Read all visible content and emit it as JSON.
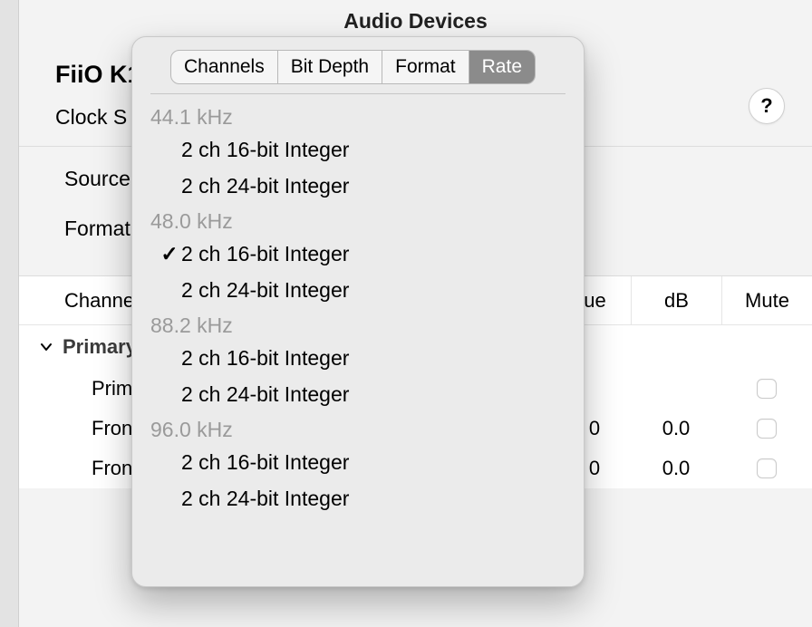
{
  "window": {
    "title": "Audio Devices"
  },
  "device": {
    "name": "FiiO K1",
    "clock_label": "Clock S"
  },
  "help": {
    "glyph": "?"
  },
  "middle": {
    "source_label": "Source",
    "format_label": "Format"
  },
  "table": {
    "headers": {
      "channel": "Channel",
      "value_tail": "ue",
      "db": "dB",
      "mute": "Mute"
    },
    "section_label": "Primary",
    "rows": [
      {
        "name": "Prim",
        "ue": "",
        "db": "",
        "mute": true
      },
      {
        "name": "Front L",
        "ue": "0",
        "db": "0.0",
        "mute": true
      },
      {
        "name": "Front Ri",
        "ue": "0",
        "db": "0.0",
        "mute": true
      }
    ]
  },
  "popover": {
    "tabs": [
      "Channels",
      "Bit Depth",
      "Format",
      "Rate"
    ],
    "selected_tab_index": 3,
    "groups": [
      {
        "header": "44.1 kHz",
        "options": [
          {
            "label": "2 ch 16-bit Integer",
            "checked": false
          },
          {
            "label": "2 ch 24-bit Integer",
            "checked": false
          }
        ]
      },
      {
        "header": "48.0 kHz",
        "options": [
          {
            "label": "2 ch 16-bit Integer",
            "checked": true
          },
          {
            "label": "2 ch 24-bit Integer",
            "checked": false
          }
        ]
      },
      {
        "header": "88.2 kHz",
        "options": [
          {
            "label": "2 ch 16-bit Integer",
            "checked": false
          },
          {
            "label": "2 ch 24-bit Integer",
            "checked": false
          }
        ]
      },
      {
        "header": "96.0 kHz",
        "options": [
          {
            "label": "2 ch 16-bit Integer",
            "checked": false
          },
          {
            "label": "2 ch 24-bit Integer",
            "checked": false
          }
        ]
      }
    ]
  },
  "colors": {
    "panel_bg": "#f3f3f3",
    "popover_bg": "#ebebeb",
    "seg_selected_bg": "#8b8b8b",
    "group_header_color": "#9a9a9a"
  }
}
